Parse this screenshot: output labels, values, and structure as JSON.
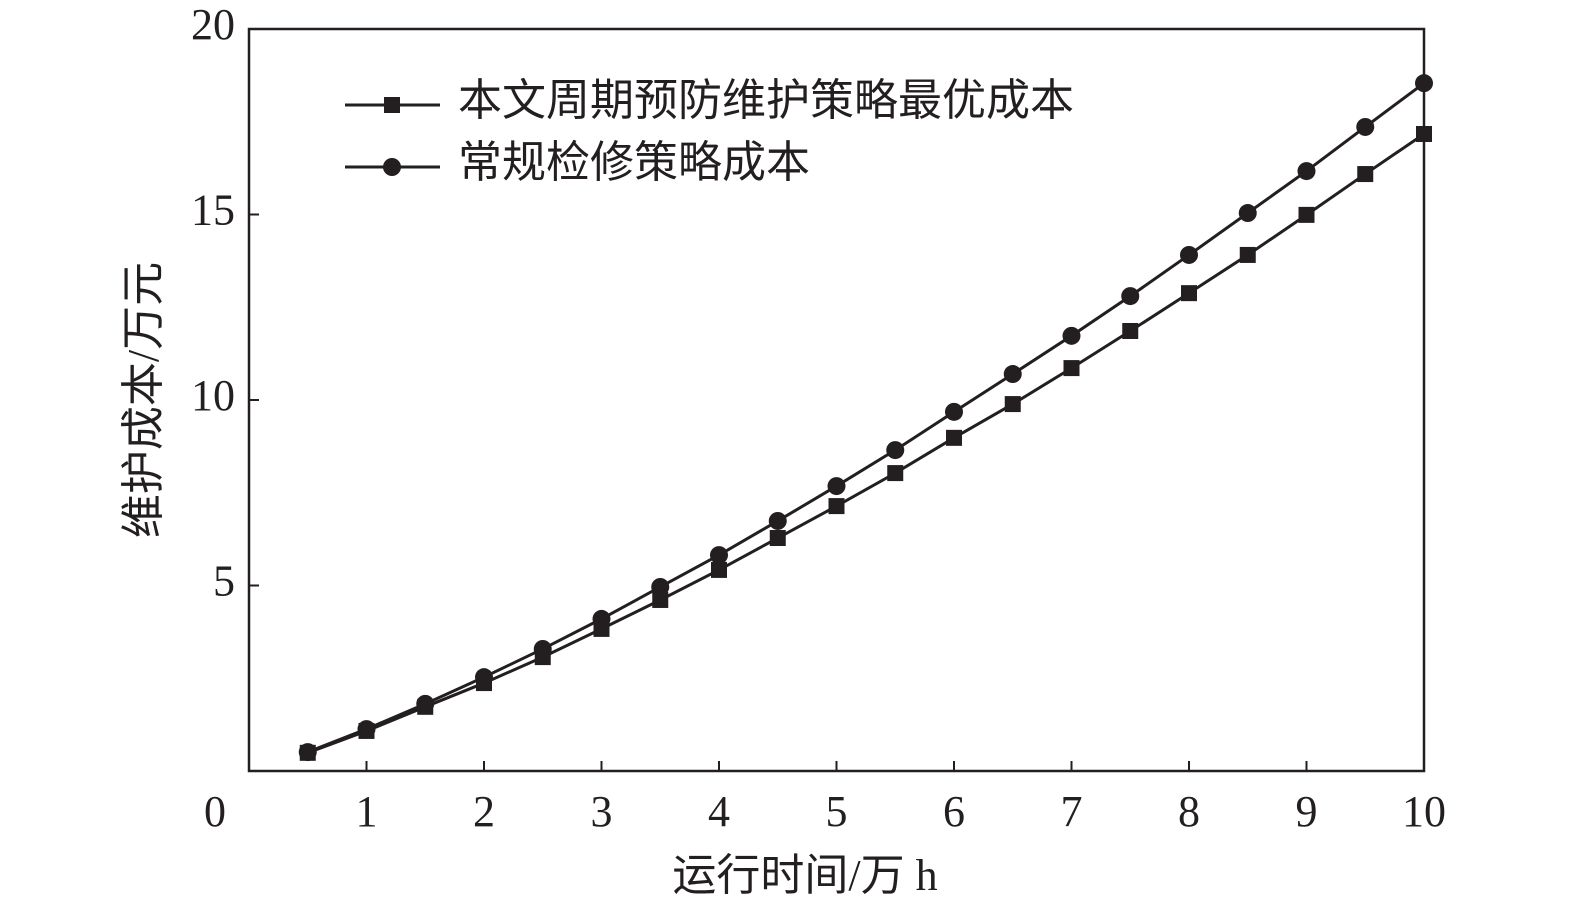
{
  "chart_data": {
    "type": "line",
    "xlabel": "运行时间/万 h",
    "ylabel": "维护成本/万元",
    "x": [
      0.5,
      1,
      1.5,
      2,
      2.5,
      3,
      3.5,
      4,
      4.5,
      5,
      5.5,
      6,
      6.5,
      7,
      7.5,
      8,
      8.5,
      9,
      9.5,
      10
    ],
    "series": [
      {
        "name": "本文周期预防维护策略最优成本",
        "color": "#231f20",
        "marker": "square",
        "values": [
          0.49,
          1.08,
          1.73,
          2.37,
          3.07,
          3.83,
          4.61,
          5.42,
          6.28,
          7.14,
          8.03,
          8.98,
          9.89,
          10.86,
          11.86,
          12.88,
          13.91,
          14.99,
          16.09,
          17.17
        ]
      },
      {
        "name": "常规检修策略成本",
        "color": "#231f20",
        "marker": "circle",
        "values": [
          0.51,
          1.13,
          1.81,
          2.53,
          3.29,
          4.1,
          4.96,
          5.82,
          6.74,
          7.68,
          8.65,
          9.68,
          10.7,
          11.73,
          12.8,
          13.91,
          15.04,
          16.17,
          17.36,
          18.54
        ]
      }
    ],
    "xlim": [
      0,
      10
    ],
    "xticks": [
      0,
      1,
      2,
      3,
      4,
      5,
      6,
      7,
      8,
      9,
      10
    ],
    "ylim": [
      0,
      20
    ],
    "yticks": [
      5,
      10,
      15,
      20
    ],
    "grid": false,
    "legend": "upper left"
  }
}
